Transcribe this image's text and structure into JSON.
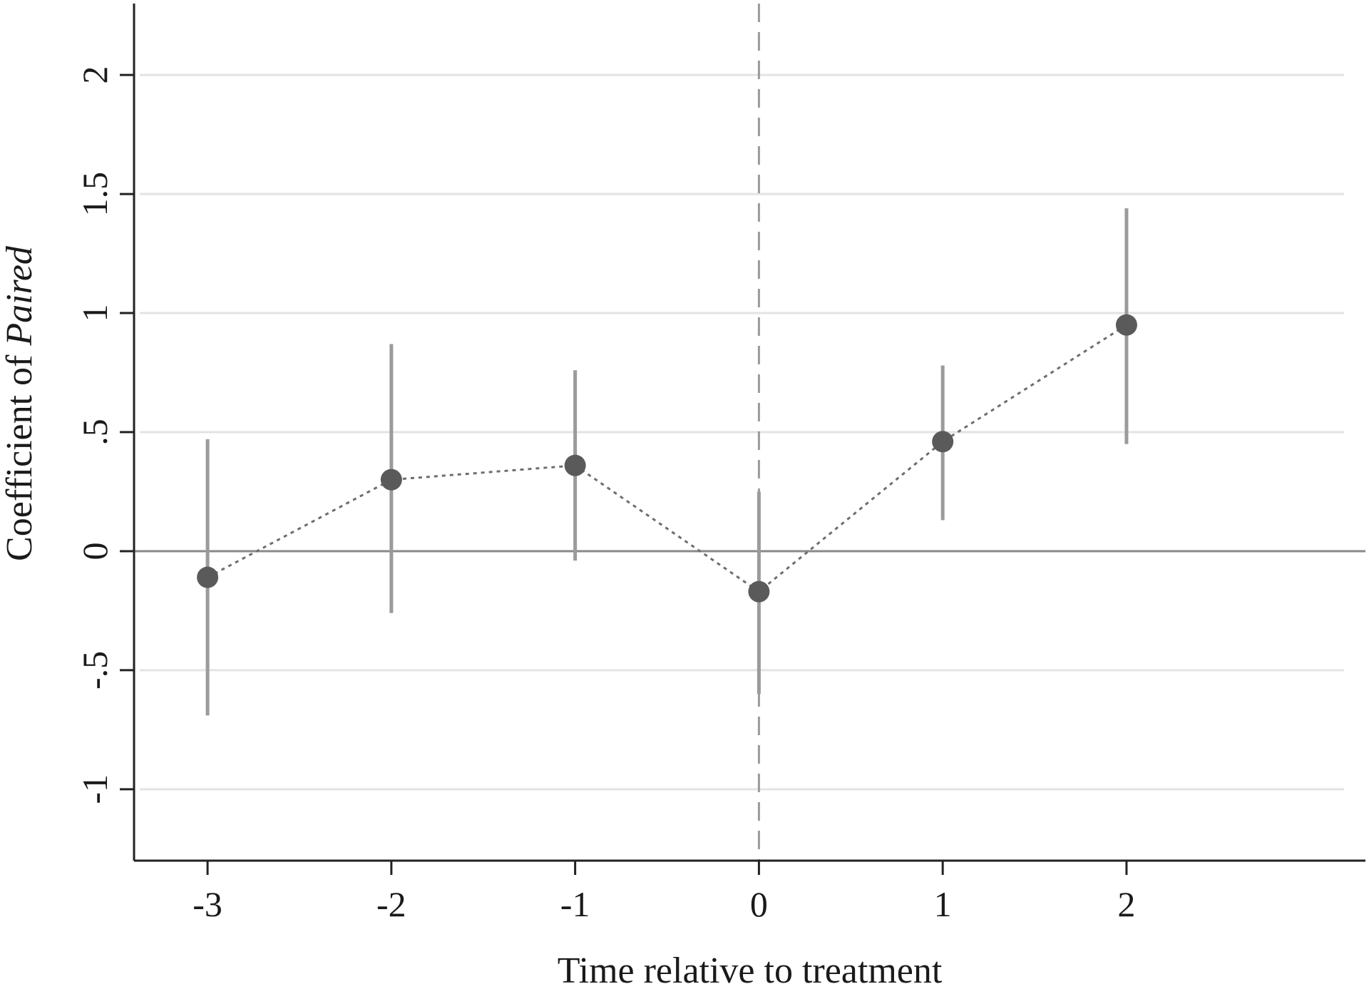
{
  "chart_data": {
    "type": "scatter",
    "xlabel": "Time relative to treatment",
    "ylabel_prefix": "Coefficient of ",
    "ylabel_italic": "Paired",
    "x_ticks": [
      -3,
      -2,
      -1,
      0,
      1,
      2
    ],
    "x_tick_labels": [
      "-3",
      "-2",
      "-1",
      "0",
      "1",
      "2"
    ],
    "y_ticks": [
      -1,
      -0.5,
      0,
      0.5,
      1,
      1.5,
      2
    ],
    "y_tick_labels": [
      "-1",
      "-.5",
      "0",
      ".5",
      "1",
      "1.5",
      "2"
    ],
    "xlim": [
      -3.4,
      3.3
    ],
    "ylim": [
      -1.3,
      2.3
    ],
    "grid": true,
    "reference_lines": {
      "horizontal_y": 0,
      "vertical_x": 0
    },
    "series": [
      {
        "x": [
          -3,
          -2,
          -1,
          0,
          1,
          2
        ],
        "y": [
          -0.11,
          0.3,
          0.36,
          -0.17,
          0.46,
          0.95
        ],
        "ci_low": [
          -0.69,
          -0.26,
          -0.04,
          -0.6,
          0.13,
          0.45
        ],
        "ci_high": [
          0.47,
          0.87,
          0.76,
          0.25,
          0.78,
          1.44
        ]
      }
    ],
    "colors": {
      "marker": "#5a5a5a",
      "ci": "#9b9b9b",
      "connector": "#6e6e6e",
      "grid": "#e3e3e3",
      "axis": "#222222",
      "zero_line": "#8a8a8a",
      "vline": "#9a9a9a"
    }
  }
}
